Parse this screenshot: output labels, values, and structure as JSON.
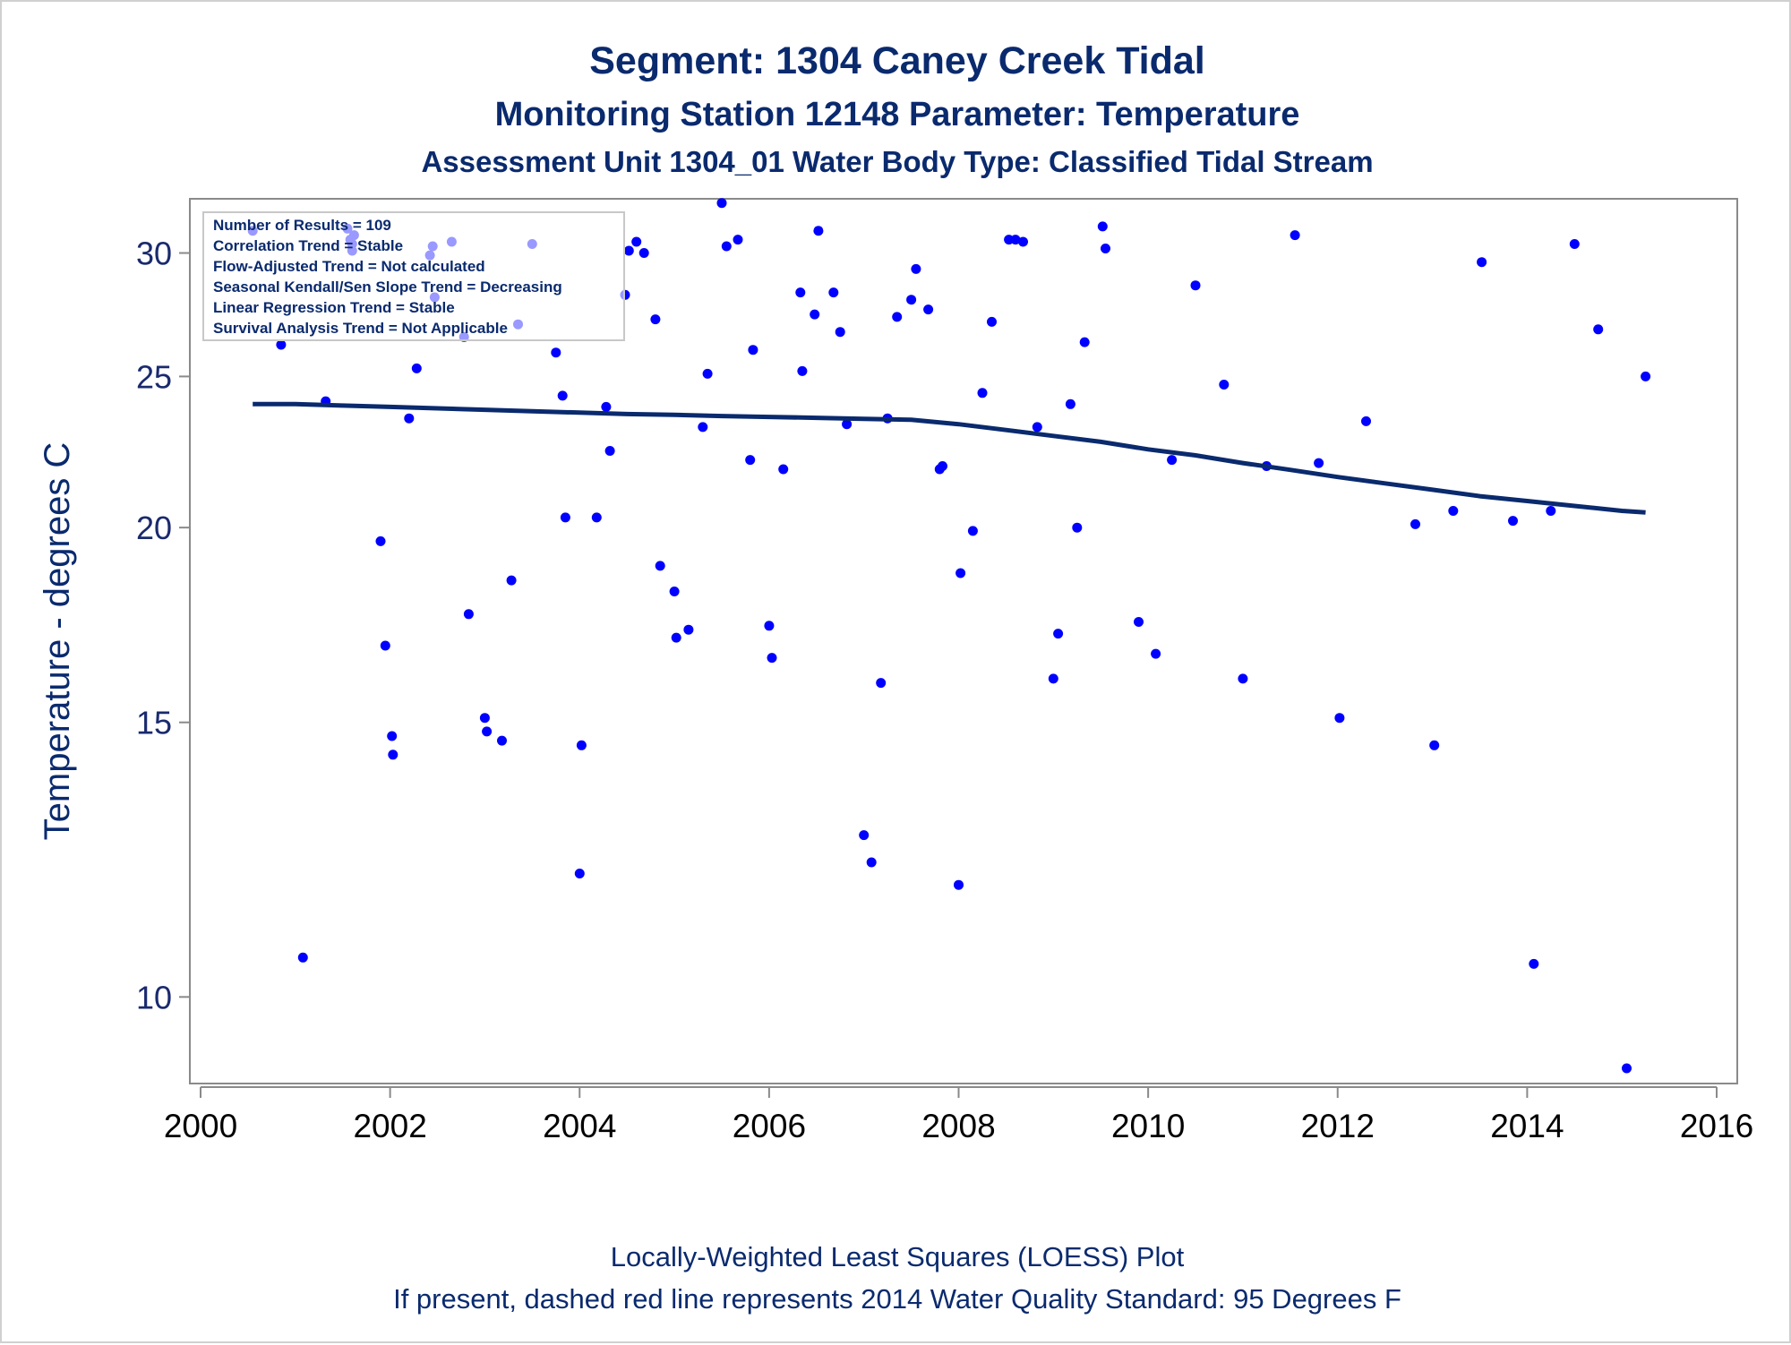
{
  "title": "Segment: 1304  Caney Creek Tidal",
  "subtitle1": "Monitoring Station 12148 Parameter: Temperature",
  "subtitle2": "Assessment Unit 1304_01   Water Body Type: Classified Tidal Stream",
  "footnote1": "Locally-Weighted Least Squares (LOESS) Plot",
  "footnote2": "If present, dashed red line represents 2014 Water Quality Standard: 95   Degrees F",
  "stats_box": [
    "Number of Results = 109",
    "Correlation Trend = Stable",
    "Flow-Adjusted Trend = Not calculated",
    "Seasonal Kendall/Sen Slope Trend = Decreasing",
    "Linear Regression Trend = Stable",
    "Survival Analysis Trend = Not Applicable"
  ],
  "colors": {
    "points": "#0000ff",
    "loess": "#0a2a6e",
    "text": "#0a2a6e",
    "frame": "#8a8a8a"
  },
  "chart_data": {
    "type": "scatter",
    "xlabel": "",
    "ylabel": "Temperature - degrees C",
    "y_scale": "log",
    "xlim": [
      2000,
      2016
    ],
    "ylim": [
      8.8,
      32.5
    ],
    "x_ticks": [
      "2000",
      "2002",
      "2004",
      "2006",
      "2008",
      "2010",
      "2012",
      "2014",
      "2016"
    ],
    "y_ticks": [
      "10",
      "15",
      "20",
      "25",
      "30"
    ],
    "series": [
      {
        "type": "scatter",
        "x": [
          2000.55,
          2000.85,
          2001.08,
          2001.32,
          2001.55,
          2001.58,
          2001.6,
          2001.62,
          2001.9,
          2001.95,
          2002.02,
          2002.03,
          2002.2,
          2002.28,
          2002.42,
          2002.45,
          2002.47,
          2002.65,
          2002.78,
          2002.83,
          2003.0,
          2003.02,
          2003.18,
          2003.28,
          2003.35,
          2003.5,
          2003.75,
          2003.82,
          2003.85,
          2004.0,
          2004.02,
          2004.18,
          2004.28,
          2004.32,
          2004.48,
          2004.52,
          2004.6,
          2004.68,
          2004.8,
          2004.85,
          2005.0,
          2005.02,
          2005.15,
          2005.3,
          2005.35,
          2005.5,
          2005.55,
          2005.67,
          2005.8,
          2005.83,
          2006.0,
          2006.03,
          2006.15,
          2006.33,
          2006.35,
          2006.48,
          2006.52,
          2006.68,
          2006.75,
          2006.82,
          2007.0,
          2007.08,
          2007.18,
          2007.25,
          2007.35,
          2007.5,
          2007.55,
          2007.68,
          2007.8,
          2007.83,
          2008.0,
          2008.02,
          2008.15,
          2008.25,
          2008.35,
          2008.53,
          2008.6,
          2008.68,
          2008.83,
          2009.0,
          2009.05,
          2009.18,
          2009.25,
          2009.33,
          2009.52,
          2009.55,
          2009.9,
          2010.08,
          2010.25,
          2010.5,
          2010.8,
          2011.0,
          2011.25,
          2011.55,
          2011.8,
          2012.02,
          2012.3,
          2012.82,
          2013.02,
          2013.22,
          2013.52,
          2013.85,
          2014.07,
          2014.25,
          2014.5,
          2014.75,
          2015.05,
          2015.25,
          2001.6
        ],
        "y": [
          31.0,
          26.2,
          10.6,
          24.1,
          31.1,
          30.6,
          30.1,
          30.8,
          19.6,
          16.8,
          14.7,
          14.3,
          23.5,
          25.3,
          29.9,
          30.3,
          28.1,
          30.5,
          26.5,
          17.6,
          15.1,
          14.8,
          14.6,
          18.5,
          27.0,
          30.4,
          25.9,
          24.3,
          20.3,
          12.0,
          14.5,
          20.3,
          23.9,
          22.4,
          28.2,
          30.1,
          30.5,
          30.0,
          27.2,
          18.9,
          18.2,
          17.0,
          17.2,
          23.2,
          25.1,
          32.3,
          30.3,
          30.6,
          22.1,
          26.0,
          17.3,
          16.5,
          21.8,
          28.3,
          25.2,
          27.4,
          31.0,
          28.3,
          26.7,
          23.3,
          12.7,
          12.2,
          15.9,
          23.5,
          27.3,
          28.0,
          29.3,
          27.6,
          21.8,
          21.9,
          11.8,
          18.7,
          19.9,
          24.4,
          27.1,
          30.6,
          30.6,
          30.5,
          23.2,
          16.0,
          17.1,
          24.0,
          20.0,
          26.3,
          31.2,
          30.2,
          17.4,
          16.6,
          22.1,
          28.6,
          24.7,
          16.0,
          21.9,
          30.8,
          22.0,
          15.1,
          23.4,
          20.1,
          14.5,
          20.5,
          29.6,
          20.2,
          10.5,
          20.5,
          30.4,
          26.8,
          9.0,
          25.0,
          30.4
        ]
      },
      {
        "type": "line",
        "x": [
          2000.55,
          2001.0,
          2001.5,
          2002.0,
          2002.5,
          2003.0,
          2003.5,
          2004.0,
          2004.5,
          2005.0,
          2005.5,
          2006.0,
          2006.5,
          2007.0,
          2007.5,
          2008.0,
          2008.5,
          2009.0,
          2009.5,
          2010.0,
          2010.5,
          2011.0,
          2011.5,
          2012.0,
          2012.5,
          2013.0,
          2013.5,
          2014.0,
          2014.5,
          2015.0,
          2015.25
        ],
        "y": [
          24.0,
          24.0,
          23.95,
          23.9,
          23.85,
          23.8,
          23.75,
          23.7,
          23.65,
          23.62,
          23.58,
          23.55,
          23.52,
          23.48,
          23.45,
          23.3,
          23.1,
          22.9,
          22.7,
          22.45,
          22.25,
          22.0,
          21.78,
          21.55,
          21.35,
          21.15,
          20.95,
          20.8,
          20.65,
          20.5,
          20.45
        ]
      }
    ]
  }
}
